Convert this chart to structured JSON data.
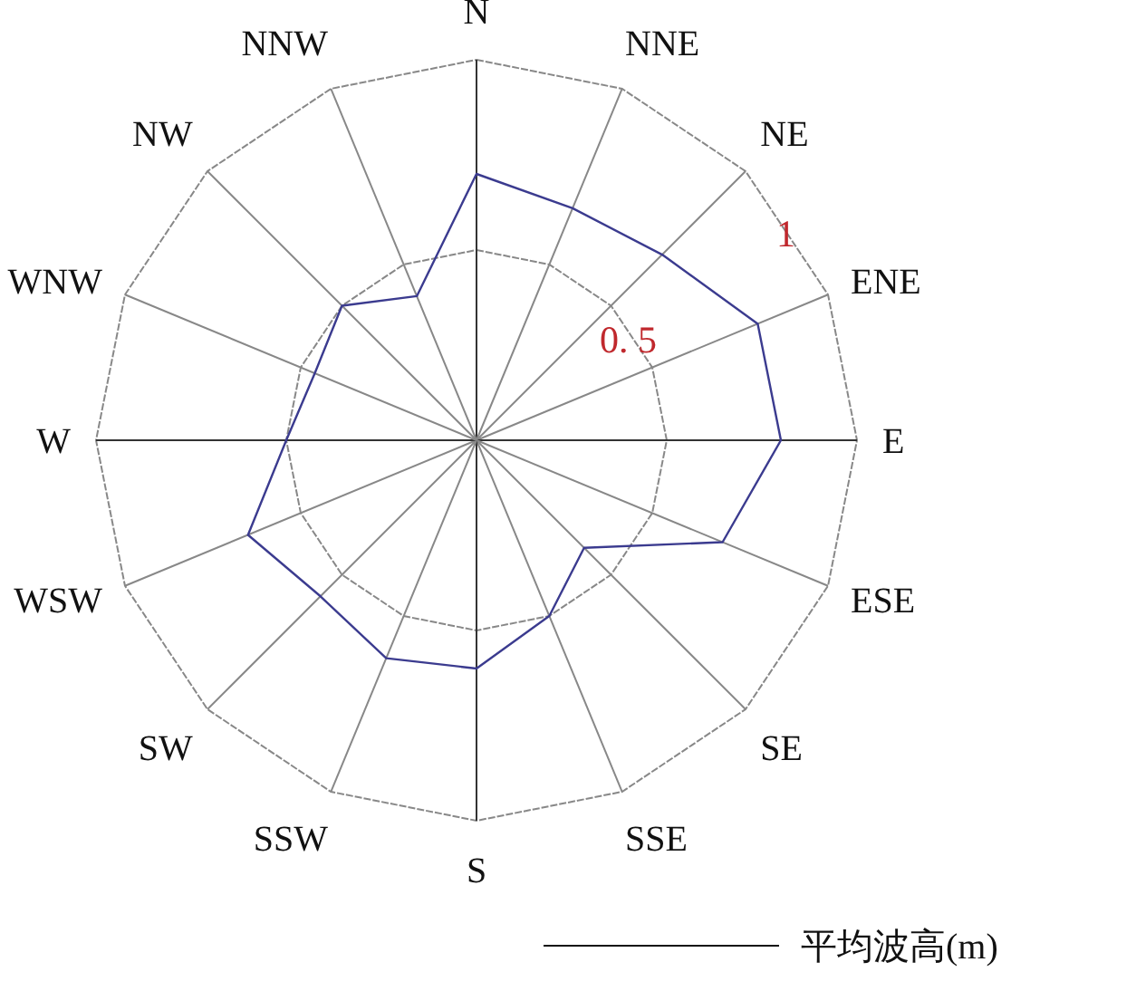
{
  "chart_data": {
    "type": "radar",
    "categories": [
      "N",
      "NNE",
      "NE",
      "ENE",
      "E",
      "ESE",
      "SE",
      "SSE",
      "S",
      "SSW",
      "SW",
      "WSW",
      "W",
      "WNW",
      "NW",
      "NNW"
    ],
    "series": [
      {
        "name": "平均波高(m)",
        "color": "#3b3b8f",
        "values": [
          0.7,
          0.66,
          0.69,
          0.8,
          0.8,
          0.7,
          0.4,
          0.5,
          0.6,
          0.62,
          0.58,
          0.65,
          0.5,
          0.46,
          0.5,
          0.41
        ]
      }
    ],
    "ylim": [
      0,
      1
    ],
    "yticks": [
      0.5,
      1
    ],
    "grid": true,
    "legend": "bottom right"
  }
}
